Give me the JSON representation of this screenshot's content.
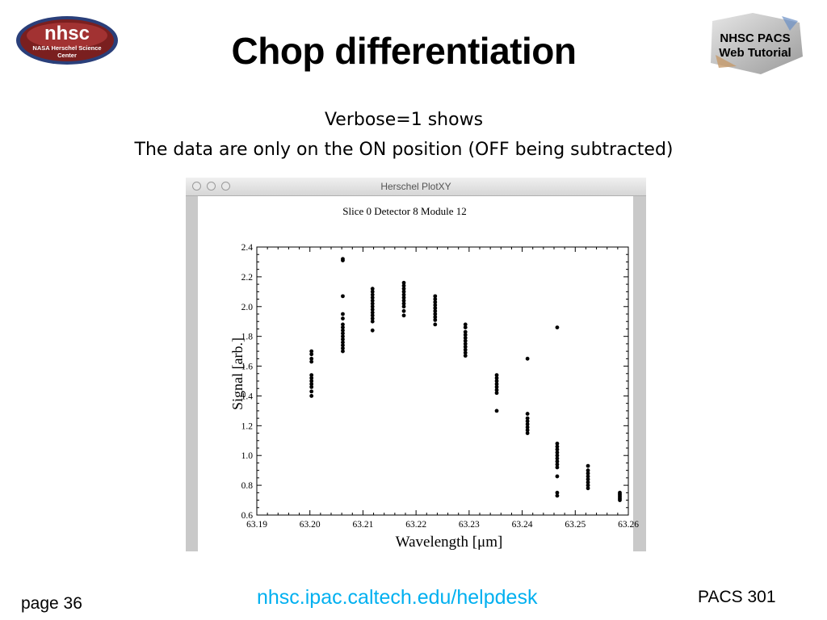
{
  "slide": {
    "title": "Chop differentiation",
    "subtitle_line1": "Verbose=1 shows",
    "subtitle_line2": "The data are only on the ON position (OFF being subtracted)",
    "footer_url": "nhsc.ipac.caltech.edu/helpdesk",
    "footer_page": "page 36",
    "footer_course": "PACS 301"
  },
  "logos": {
    "left": {
      "line1": "nhsc",
      "line2": "NASA Herschel Science",
      "line3": "Center",
      "color": "#b52a2a"
    },
    "right": {
      "line1": "NHSC PACS",
      "line2": "Web Tutorial"
    }
  },
  "window": {
    "title": "Herschel PlotXY"
  },
  "chart_data": {
    "type": "scatter",
    "title": "Slice 0 Detector 8 Module 12",
    "xlabel": "Wavelength [μm]",
    "ylabel": "Signal [arb.]",
    "xlim": [
      63.19,
      63.26
    ],
    "ylim": [
      0.6,
      2.4
    ],
    "x_ticks": [
      "63.19",
      "63.20",
      "63.21",
      "63.22",
      "63.23",
      "63.24",
      "63.25",
      "63.26"
    ],
    "y_ticks": [
      "0.6",
      "0.8",
      "1.0",
      "1.2",
      "1.4",
      "1.6",
      "1.8",
      "2.0",
      "2.2",
      "2.4"
    ],
    "grid": false,
    "point_color": "#000000",
    "series": [
      {
        "values": [
          {
            "x": 63.2003,
            "y": 1.4
          },
          {
            "x": 63.2003,
            "y": 1.43
          },
          {
            "x": 63.2003,
            "y": 1.46
          },
          {
            "x": 63.2003,
            "y": 1.48
          },
          {
            "x": 63.2003,
            "y": 1.5
          },
          {
            "x": 63.2003,
            "y": 1.52
          },
          {
            "x": 63.2003,
            "y": 1.54
          },
          {
            "x": 63.2003,
            "y": 1.63
          },
          {
            "x": 63.2003,
            "y": 1.65
          },
          {
            "x": 63.2003,
            "y": 1.68
          },
          {
            "x": 63.2003,
            "y": 1.7
          },
          {
            "x": 63.2062,
            "y": 2.31
          },
          {
            "x": 63.2062,
            "y": 2.32
          },
          {
            "x": 63.2062,
            "y": 2.07
          },
          {
            "x": 63.2062,
            "y": 1.7
          },
          {
            "x": 63.2062,
            "y": 1.72
          },
          {
            "x": 63.2062,
            "y": 1.74
          },
          {
            "x": 63.2062,
            "y": 1.76
          },
          {
            "x": 63.2062,
            "y": 1.78
          },
          {
            "x": 63.2062,
            "y": 1.8
          },
          {
            "x": 63.2062,
            "y": 1.82
          },
          {
            "x": 63.2062,
            "y": 1.84
          },
          {
            "x": 63.2062,
            "y": 1.86
          },
          {
            "x": 63.2062,
            "y": 1.88
          },
          {
            "x": 63.2062,
            "y": 1.92
          },
          {
            "x": 63.2062,
            "y": 1.95
          },
          {
            "x": 63.2118,
            "y": 1.84
          },
          {
            "x": 63.2118,
            "y": 1.9
          },
          {
            "x": 63.2118,
            "y": 1.92
          },
          {
            "x": 63.2118,
            "y": 1.94
          },
          {
            "x": 63.2118,
            "y": 1.96
          },
          {
            "x": 63.2118,
            "y": 1.98
          },
          {
            "x": 63.2118,
            "y": 2.0
          },
          {
            "x": 63.2118,
            "y": 2.02
          },
          {
            "x": 63.2118,
            "y": 2.04
          },
          {
            "x": 63.2118,
            "y": 2.06
          },
          {
            "x": 63.2118,
            "y": 2.08
          },
          {
            "x": 63.2118,
            "y": 2.1
          },
          {
            "x": 63.2118,
            "y": 2.12
          },
          {
            "x": 63.2177,
            "y": 1.94
          },
          {
            "x": 63.2177,
            "y": 1.97
          },
          {
            "x": 63.2177,
            "y": 2.0
          },
          {
            "x": 63.2177,
            "y": 2.02
          },
          {
            "x": 63.2177,
            "y": 2.04
          },
          {
            "x": 63.2177,
            "y": 2.06
          },
          {
            "x": 63.2177,
            "y": 2.08
          },
          {
            "x": 63.2177,
            "y": 2.1
          },
          {
            "x": 63.2177,
            "y": 2.12
          },
          {
            "x": 63.2177,
            "y": 2.14
          },
          {
            "x": 63.2177,
            "y": 2.16
          },
          {
            "x": 63.2236,
            "y": 1.88
          },
          {
            "x": 63.2236,
            "y": 1.91
          },
          {
            "x": 63.2236,
            "y": 1.93
          },
          {
            "x": 63.2236,
            "y": 1.95
          },
          {
            "x": 63.2236,
            "y": 1.97
          },
          {
            "x": 63.2236,
            "y": 1.99
          },
          {
            "x": 63.2236,
            "y": 2.01
          },
          {
            "x": 63.2236,
            "y": 2.03
          },
          {
            "x": 63.2236,
            "y": 2.05
          },
          {
            "x": 63.2236,
            "y": 2.07
          },
          {
            "x": 63.2293,
            "y": 1.67
          },
          {
            "x": 63.2293,
            "y": 1.69
          },
          {
            "x": 63.2293,
            "y": 1.71
          },
          {
            "x": 63.2293,
            "y": 1.73
          },
          {
            "x": 63.2293,
            "y": 1.75
          },
          {
            "x": 63.2293,
            "y": 1.77
          },
          {
            "x": 63.2293,
            "y": 1.79
          },
          {
            "x": 63.2293,
            "y": 1.81
          },
          {
            "x": 63.2293,
            "y": 1.83
          },
          {
            "x": 63.2293,
            "y": 1.86
          },
          {
            "x": 63.2293,
            "y": 1.88
          },
          {
            "x": 63.2352,
            "y": 1.3
          },
          {
            "x": 63.2352,
            "y": 1.42
          },
          {
            "x": 63.2352,
            "y": 1.44
          },
          {
            "x": 63.2352,
            "y": 1.46
          },
          {
            "x": 63.2352,
            "y": 1.48
          },
          {
            "x": 63.2352,
            "y": 1.5
          },
          {
            "x": 63.2352,
            "y": 1.52
          },
          {
            "x": 63.2352,
            "y": 1.54
          },
          {
            "x": 63.241,
            "y": 1.65
          },
          {
            "x": 63.241,
            "y": 1.15
          },
          {
            "x": 63.241,
            "y": 1.17
          },
          {
            "x": 63.241,
            "y": 1.19
          },
          {
            "x": 63.241,
            "y": 1.21
          },
          {
            "x": 63.241,
            "y": 1.23
          },
          {
            "x": 63.241,
            "y": 1.25
          },
          {
            "x": 63.241,
            "y": 1.28
          },
          {
            "x": 63.2466,
            "y": 1.86
          },
          {
            "x": 63.2466,
            "y": 0.73
          },
          {
            "x": 63.2466,
            "y": 0.75
          },
          {
            "x": 63.2466,
            "y": 0.86
          },
          {
            "x": 63.2466,
            "y": 0.92
          },
          {
            "x": 63.2466,
            "y": 0.94
          },
          {
            "x": 63.2466,
            "y": 0.96
          },
          {
            "x": 63.2466,
            "y": 0.98
          },
          {
            "x": 63.2466,
            "y": 1.0
          },
          {
            "x": 63.2466,
            "y": 1.02
          },
          {
            "x": 63.2466,
            "y": 1.04
          },
          {
            "x": 63.2466,
            "y": 1.06
          },
          {
            "x": 63.2466,
            "y": 1.08
          },
          {
            "x": 63.2524,
            "y": 0.78
          },
          {
            "x": 63.2524,
            "y": 0.8
          },
          {
            "x": 63.2524,
            "y": 0.82
          },
          {
            "x": 63.2524,
            "y": 0.84
          },
          {
            "x": 63.2524,
            "y": 0.86
          },
          {
            "x": 63.2524,
            "y": 0.88
          },
          {
            "x": 63.2524,
            "y": 0.9
          },
          {
            "x": 63.2524,
            "y": 0.93
          },
          {
            "x": 63.2584,
            "y": 0.7
          },
          {
            "x": 63.2584,
            "y": 0.71
          },
          {
            "x": 63.2584,
            "y": 0.72
          },
          {
            "x": 63.2584,
            "y": 0.73
          },
          {
            "x": 63.2584,
            "y": 0.74
          },
          {
            "x": 63.2584,
            "y": 0.75
          }
        ]
      }
    ]
  }
}
